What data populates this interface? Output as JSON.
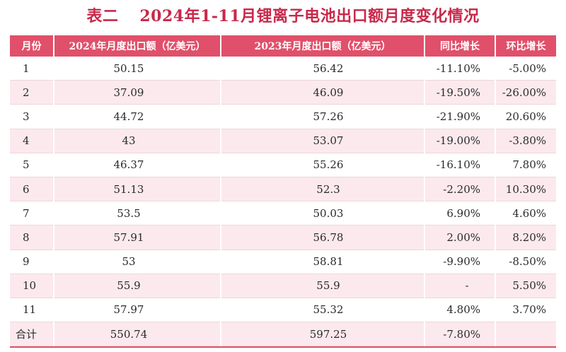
{
  "title": {
    "label": "表二",
    "text": "2024年1-11月锂离子电池出口额月度变化情况"
  },
  "headers": {
    "month": "月份",
    "export2024": "2024年月度出口额（亿美元）",
    "export2023": "2023年月度出口额（亿美元）",
    "yoy": "同比增长",
    "mom": "环比增长"
  },
  "rows": [
    {
      "month": "1",
      "export2024": "50.15",
      "export2023": "56.42",
      "yoy": "-11.10%",
      "mom": "-5.00%"
    },
    {
      "month": "2",
      "export2024": "37.09",
      "export2023": "46.09",
      "yoy": "-19.50%",
      "mom": "-26.00%"
    },
    {
      "month": "3",
      "export2024": "44.72",
      "export2023": "57.26",
      "yoy": "-21.90%",
      "mom": "20.60%"
    },
    {
      "month": "4",
      "export2024": "43",
      "export2023": "53.07",
      "yoy": "-19.00%",
      "mom": "-3.80%"
    },
    {
      "month": "5",
      "export2024": "46.37",
      "export2023": "55.26",
      "yoy": "-16.10%",
      "mom": "7.80%"
    },
    {
      "month": "6",
      "export2024": "51.13",
      "export2023": "52.3",
      "yoy": "-2.20%",
      "mom": "10.30%"
    },
    {
      "month": "7",
      "export2024": "53.5",
      "export2023": "50.03",
      "yoy": "6.90%",
      "mom": "4.60%"
    },
    {
      "month": "8",
      "export2024": "57.91",
      "export2023": "56.78",
      "yoy": "2.00%",
      "mom": "8.20%"
    },
    {
      "month": "9",
      "export2024": "53",
      "export2023": "58.81",
      "yoy": "-9.90%",
      "mom": "-8.50%"
    },
    {
      "month": "10",
      "export2024": "55.9",
      "export2023": "55.9",
      "yoy": "-",
      "mom": "5.50%"
    },
    {
      "month": "11",
      "export2024": "57.97",
      "export2023": "55.32",
      "yoy": "4.80%",
      "mom": "3.70%"
    }
  ],
  "total": {
    "month": "合计",
    "export2024": "550.74",
    "export2023": "597.25",
    "yoy": "-7.80%",
    "mom": ""
  },
  "colors": {
    "title": "#c8284a",
    "header_bg": "#e0506a",
    "stripe": "#fbe9ee"
  }
}
